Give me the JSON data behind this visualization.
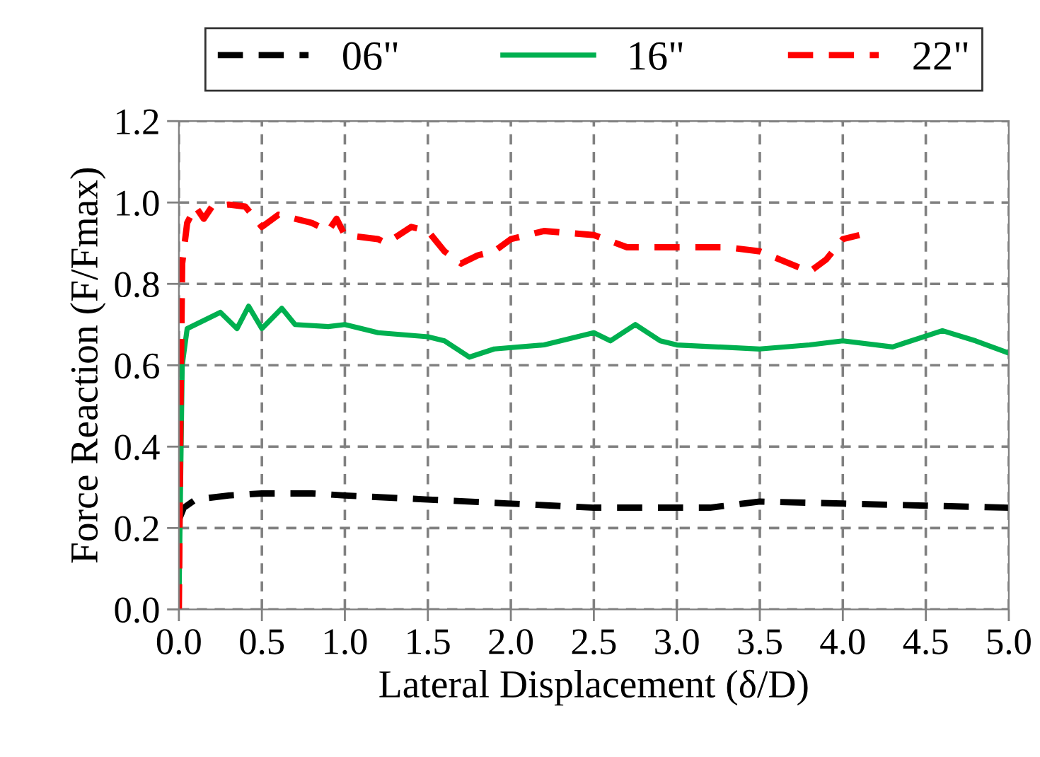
{
  "chart_data": {
    "type": "line",
    "xlabel": "Lateral Displacement (δ/D)",
    "ylabel": "Force Reaction (F/Fmax)",
    "xlim": [
      0,
      5
    ],
    "xticks": [
      {
        "value": 0,
        "label": "0.0"
      },
      0.5,
      {
        "value": 1,
        "label": "1.0"
      },
      1.5,
      {
        "value": 2,
        "label": "2.0"
      },
      2.5,
      {
        "value": 3,
        "label": "3.0"
      },
      3.5,
      {
        "value": 4,
        "label": "4.0"
      },
      4.5,
      {
        "value": 5,
        "label": "5.0"
      }
    ],
    "ylim": [
      0,
      1.2
    ],
    "yticks": [
      {
        "value": 0,
        "label": "0.0"
      },
      0.2,
      0.4,
      0.6,
      0.8,
      {
        "value": 1,
        "label": "1.0"
      },
      1.2
    ],
    "grid": true,
    "legend": "top",
    "marker": "none",
    "series": [
      {
        "name": "06\"",
        "color": "#000000",
        "line_style": "dashed",
        "x": [
          0,
          0.03,
          0.1,
          0.3,
          0.5,
          0.8,
          1.0,
          1.5,
          2.0,
          2.5,
          3.0,
          3.2,
          3.5,
          4.0,
          4.5,
          5.0
        ],
        "values": [
          0.22,
          0.25,
          0.27,
          0.28,
          0.285,
          0.285,
          0.28,
          0.27,
          0.26,
          0.25,
          0.25,
          0.25,
          0.265,
          0.26,
          0.255,
          0.25
        ]
      },
      {
        "name": "16\"",
        "color": "#00b050",
        "line_style": "solid",
        "x": [
          0,
          0.02,
          0.05,
          0.15,
          0.25,
          0.35,
          0.42,
          0.5,
          0.62,
          0.7,
          0.9,
          1.0,
          1.2,
          1.5,
          1.6,
          1.75,
          1.9,
          2.2,
          2.5,
          2.6,
          2.75,
          2.9,
          3.0,
          3.5,
          3.8,
          4.0,
          4.3,
          4.6,
          4.8,
          5.0
        ],
        "values": [
          0,
          0.6,
          0.69,
          0.71,
          0.73,
          0.69,
          0.745,
          0.69,
          0.74,
          0.7,
          0.695,
          0.7,
          0.68,
          0.67,
          0.66,
          0.62,
          0.64,
          0.65,
          0.68,
          0.66,
          0.7,
          0.66,
          0.65,
          0.64,
          0.65,
          0.66,
          0.645,
          0.685,
          0.66,
          0.63
        ]
      },
      {
        "name": "22\"",
        "color": "#ff0000",
        "line_style": "dashed",
        "x": [
          0,
          0.01,
          0.02,
          0.05,
          0.1,
          0.15,
          0.2,
          0.3,
          0.4,
          0.5,
          0.6,
          0.8,
          0.9,
          0.95,
          1.0,
          1.2,
          1.25,
          1.4,
          1.5,
          1.6,
          1.7,
          1.8,
          1.9,
          2.0,
          2.2,
          2.5,
          2.7,
          3.0,
          3.3,
          3.5,
          3.8,
          3.9,
          4.0,
          4.1
        ],
        "values": [
          0,
          0.5,
          0.85,
          0.95,
          0.99,
          0.96,
          0.99,
          0.995,
          0.99,
          0.94,
          0.97,
          0.95,
          0.93,
          0.96,
          0.92,
          0.91,
          0.9,
          0.94,
          0.93,
          0.88,
          0.85,
          0.87,
          0.88,
          0.91,
          0.93,
          0.92,
          0.89,
          0.89,
          0.89,
          0.88,
          0.83,
          0.86,
          0.91,
          0.92
        ]
      }
    ]
  }
}
